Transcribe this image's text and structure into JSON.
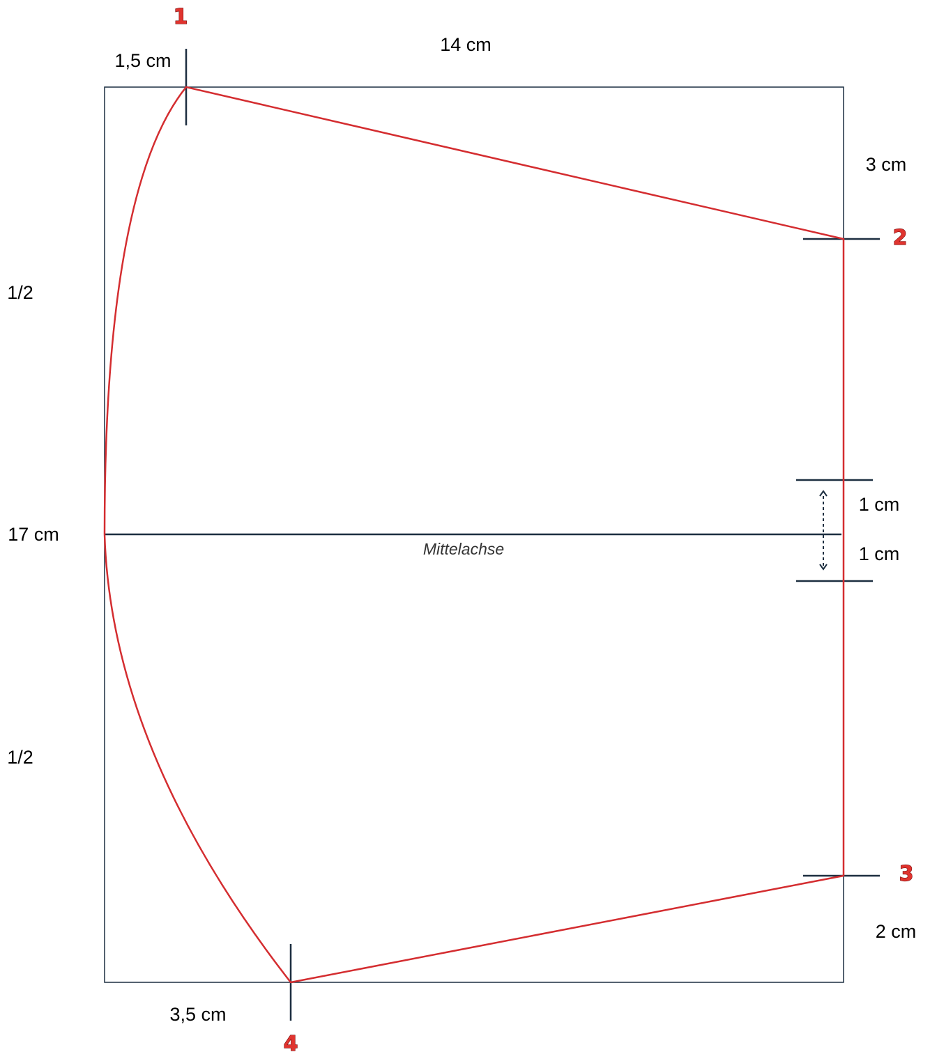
{
  "labels": {
    "offset_top_left": "1,5 cm",
    "width_top": "14 cm",
    "offset_right_top": "3 cm",
    "half_upper": "1/2",
    "height_left": "17 cm",
    "half_lower": "1/2",
    "gap_upper": "1 cm",
    "gap_lower": "1 cm",
    "offset_right_bottom": "2 cm",
    "offset_bottom_left": "3,5 cm",
    "center_axis": "Mittelachse"
  },
  "points": [
    "1",
    "2",
    "3",
    "4"
  ],
  "colors": {
    "pattern_line": "#d42d30",
    "frame_line": "#1c2e40",
    "point_number": "#e0342f"
  }
}
